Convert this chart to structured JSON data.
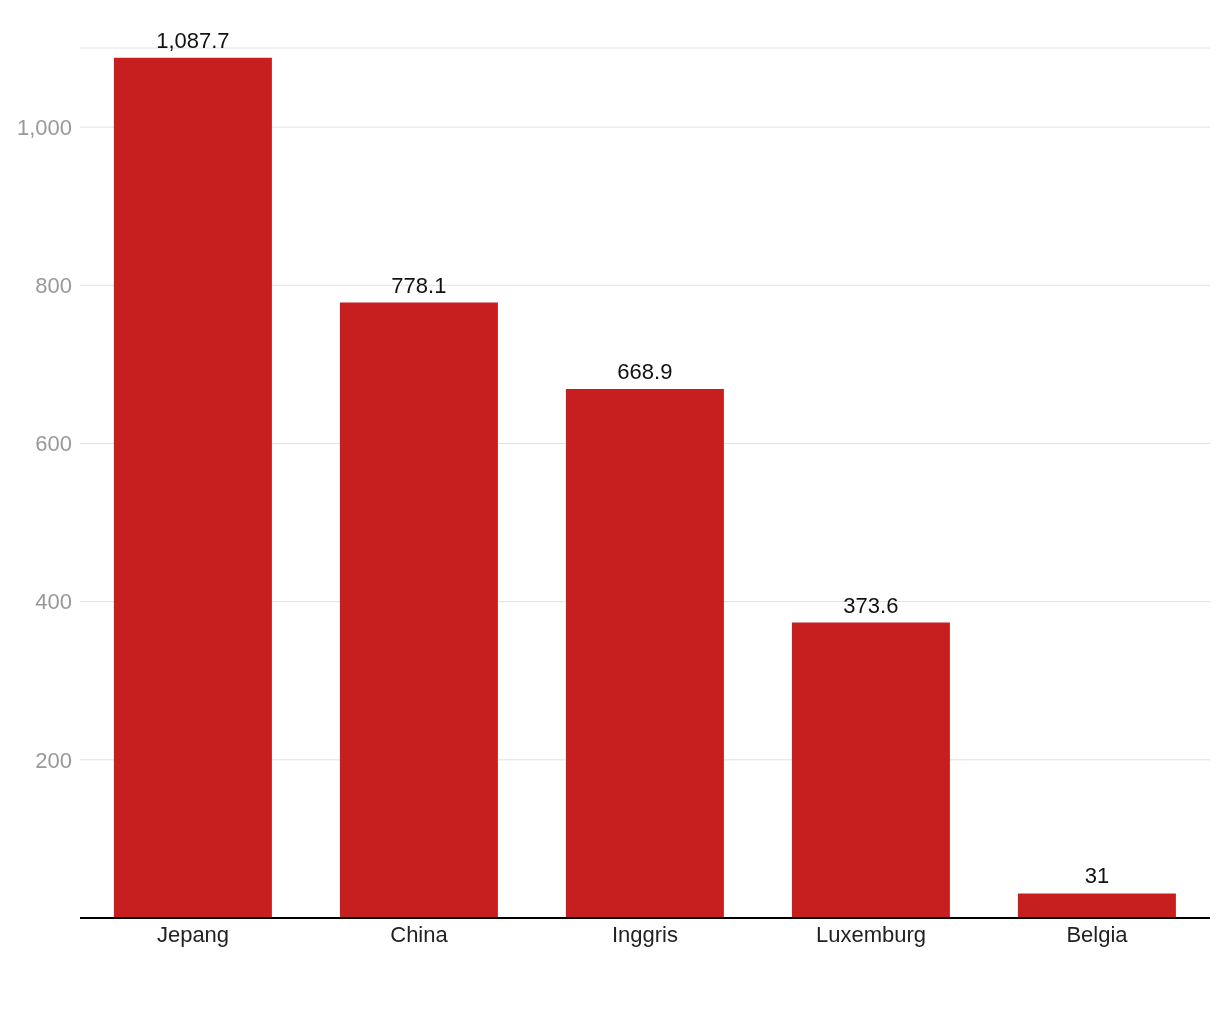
{
  "chart_data": {
    "type": "bar",
    "categories": [
      "Jepang",
      "China",
      "Inggris",
      "Luxemburg",
      "Belgia"
    ],
    "values": [
      1087.7,
      778.1,
      668.9,
      373.6,
      31
    ],
    "value_labels": [
      "1,087.7",
      "778.1",
      "668.9",
      "373.6",
      "31"
    ],
    "color": "#c71e1f",
    "ylim": [
      0,
      1100
    ],
    "yticks": [
      {
        "value": 200,
        "label": "200"
      },
      {
        "value": 400,
        "label": "400"
      },
      {
        "value": 600,
        "label": "600"
      },
      {
        "value": 800,
        "label": "800"
      },
      {
        "value": 1000,
        "label": "1,000"
      }
    ],
    "grid": "y"
  }
}
